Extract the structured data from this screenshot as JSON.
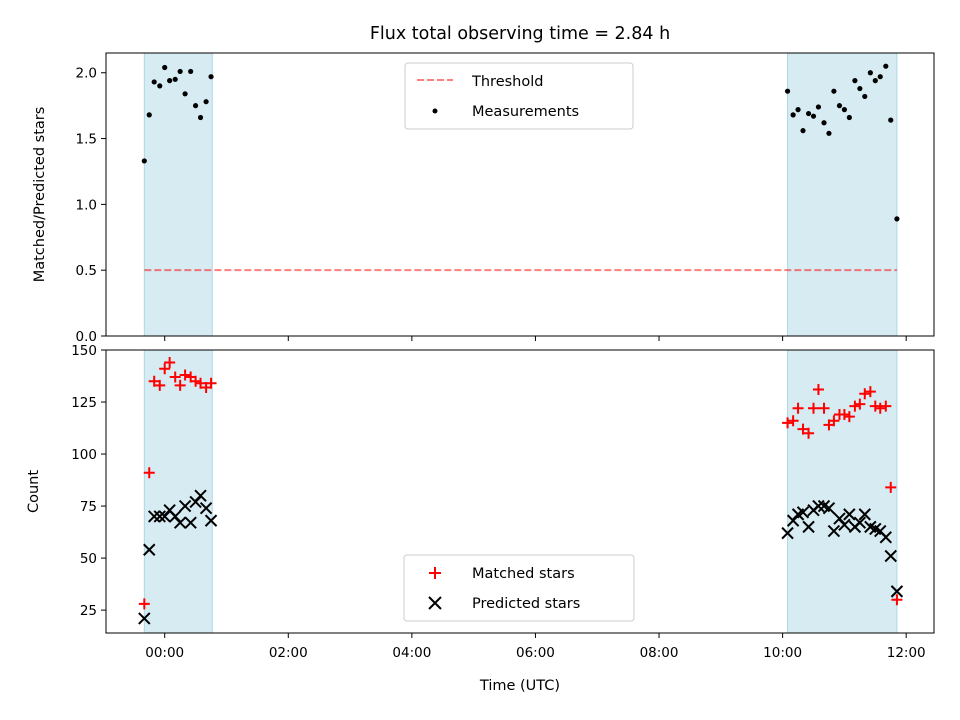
{
  "colors": {
    "band": "#add8e6",
    "threshold": "#ff0000",
    "measurement": "#000000",
    "matched": "#ff0000",
    "predicted": "#000000"
  },
  "chart_data": [
    {
      "type": "scatter",
      "title": "Flux total observing time = 2.84 h",
      "xlabel": "",
      "ylabel": "Matched/Predicted stars",
      "x_unit": "hours UTC",
      "xlim": [
        -0.95,
        12.45
      ],
      "ylim": [
        0,
        2.15
      ],
      "yticks": [
        {
          "value": 0,
          "label": "0.0"
        },
        {
          "value": 0.5,
          "label": "0.5"
        },
        {
          "value": 1.0,
          "label": "1.0"
        },
        {
          "value": 1.5,
          "label": "1.5"
        },
        {
          "value": 2.0,
          "label": "2.0"
        }
      ],
      "observing_windows": [
        [
          -0.33,
          0.77
        ],
        [
          10.08,
          11.85
        ]
      ],
      "threshold": {
        "name": "Threshold",
        "value": 0.5,
        "x_range": [
          -0.33,
          11.85
        ],
        "style": "dashed"
      },
      "legend": {
        "placement": "top-center",
        "entries": [
          "Threshold",
          "Measurements"
        ]
      },
      "series": [
        {
          "name": "Measurements",
          "marker": "dot",
          "points": [
            [
              -0.33,
              1.33
            ],
            [
              -0.25,
              1.68
            ],
            [
              -0.17,
              1.93
            ],
            [
              -0.08,
              1.9
            ],
            [
              0.0,
              2.04
            ],
            [
              0.08,
              1.94
            ],
            [
              0.17,
              1.95
            ],
            [
              0.25,
              2.01
            ],
            [
              0.33,
              1.84
            ],
            [
              0.42,
              2.01
            ],
            [
              0.5,
              1.75
            ],
            [
              0.58,
              1.66
            ],
            [
              0.67,
              1.78
            ],
            [
              0.75,
              1.97
            ],
            [
              10.08,
              1.86
            ],
            [
              10.17,
              1.68
            ],
            [
              10.25,
              1.72
            ],
            [
              10.33,
              1.56
            ],
            [
              10.42,
              1.69
            ],
            [
              10.5,
              1.67
            ],
            [
              10.58,
              1.74
            ],
            [
              10.67,
              1.62
            ],
            [
              10.75,
              1.54
            ],
            [
              10.83,
              1.86
            ],
            [
              10.92,
              1.75
            ],
            [
              11.0,
              1.72
            ],
            [
              11.08,
              1.66
            ],
            [
              11.17,
              1.94
            ],
            [
              11.25,
              1.88
            ],
            [
              11.33,
              1.82
            ],
            [
              11.42,
              2.0
            ],
            [
              11.5,
              1.94
            ],
            [
              11.58,
              1.97
            ],
            [
              11.67,
              2.05
            ],
            [
              11.75,
              1.64
            ],
            [
              11.85,
              0.89
            ]
          ]
        }
      ]
    },
    {
      "type": "scatter",
      "title": "",
      "xlabel": "Time (UTC)",
      "ylabel": "Count",
      "x_unit": "hours UTC",
      "xlim": [
        -0.95,
        12.45
      ],
      "ylim": [
        14,
        150
      ],
      "xticks": [
        {
          "value": 0,
          "label": "00:00"
        },
        {
          "value": 2,
          "label": "02:00"
        },
        {
          "value": 4,
          "label": "04:00"
        },
        {
          "value": 6,
          "label": "06:00"
        },
        {
          "value": 8,
          "label": "08:00"
        },
        {
          "value": 10,
          "label": "10:00"
        },
        {
          "value": 12,
          "label": "12:00"
        }
      ],
      "yticks": [
        {
          "value": 25,
          "label": "25"
        },
        {
          "value": 50,
          "label": "50"
        },
        {
          "value": 75,
          "label": "75"
        },
        {
          "value": 100,
          "label": "100"
        },
        {
          "value": 125,
          "label": "125"
        },
        {
          "value": 150,
          "label": "150"
        }
      ],
      "observing_windows": [
        [
          -0.33,
          0.77
        ],
        [
          10.08,
          11.85
        ]
      ],
      "legend": {
        "placement": "bottom-center",
        "entries": [
          "Matched stars",
          "Predicted stars"
        ]
      },
      "series": [
        {
          "name": "Matched stars",
          "marker": "plus",
          "points": [
            [
              -0.33,
              28
            ],
            [
              -0.25,
              91
            ],
            [
              -0.17,
              135
            ],
            [
              -0.08,
              133
            ],
            [
              0.0,
              141
            ],
            [
              0.08,
              144
            ],
            [
              0.17,
              137
            ],
            [
              0.25,
              133
            ],
            [
              0.33,
              138
            ],
            [
              0.42,
              137
            ],
            [
              0.5,
              135
            ],
            [
              0.58,
              134
            ],
            [
              0.67,
              132
            ],
            [
              0.75,
              134
            ],
            [
              10.08,
              115
            ],
            [
              10.17,
              116
            ],
            [
              10.25,
              122
            ],
            [
              10.33,
              112
            ],
            [
              10.42,
              110
            ],
            [
              10.5,
              122
            ],
            [
              10.58,
              131
            ],
            [
              10.67,
              122
            ],
            [
              10.75,
              114
            ],
            [
              10.83,
              116
            ],
            [
              10.92,
              119
            ],
            [
              11.0,
              119
            ],
            [
              11.08,
              118
            ],
            [
              11.17,
              123
            ],
            [
              11.25,
              124
            ],
            [
              11.33,
              129
            ],
            [
              11.42,
              130
            ],
            [
              11.5,
              123
            ],
            [
              11.58,
              122
            ],
            [
              11.67,
              123
            ],
            [
              11.75,
              84
            ],
            [
              11.85,
              30
            ]
          ]
        },
        {
          "name": "Predicted stars",
          "marker": "x",
          "points": [
            [
              -0.33,
              21
            ],
            [
              -0.25,
              54
            ],
            [
              -0.17,
              70
            ],
            [
              -0.08,
              70
            ],
            [
              0.0,
              70
            ],
            [
              0.08,
              73
            ],
            [
              0.17,
              70
            ],
            [
              0.25,
              67
            ],
            [
              0.33,
              75
            ],
            [
              0.42,
              67
            ],
            [
              0.5,
              77
            ],
            [
              0.58,
              80
            ],
            [
              0.67,
              74
            ],
            [
              0.75,
              68
            ],
            [
              10.08,
              62
            ],
            [
              10.17,
              68
            ],
            [
              10.25,
              71
            ],
            [
              10.33,
              72
            ],
            [
              10.42,
              65
            ],
            [
              10.5,
              73
            ],
            [
              10.58,
              75
            ],
            [
              10.67,
              75
            ],
            [
              10.75,
              74
            ],
            [
              10.83,
              63
            ],
            [
              10.92,
              69
            ],
            [
              11.0,
              66
            ],
            [
              11.08,
              71
            ],
            [
              11.17,
              65
            ],
            [
              11.25,
              67
            ],
            [
              11.33,
              71
            ],
            [
              11.42,
              65
            ],
            [
              11.5,
              64
            ],
            [
              11.58,
              63
            ],
            [
              11.67,
              60
            ],
            [
              11.75,
              51
            ],
            [
              11.85,
              34
            ]
          ]
        }
      ]
    }
  ]
}
